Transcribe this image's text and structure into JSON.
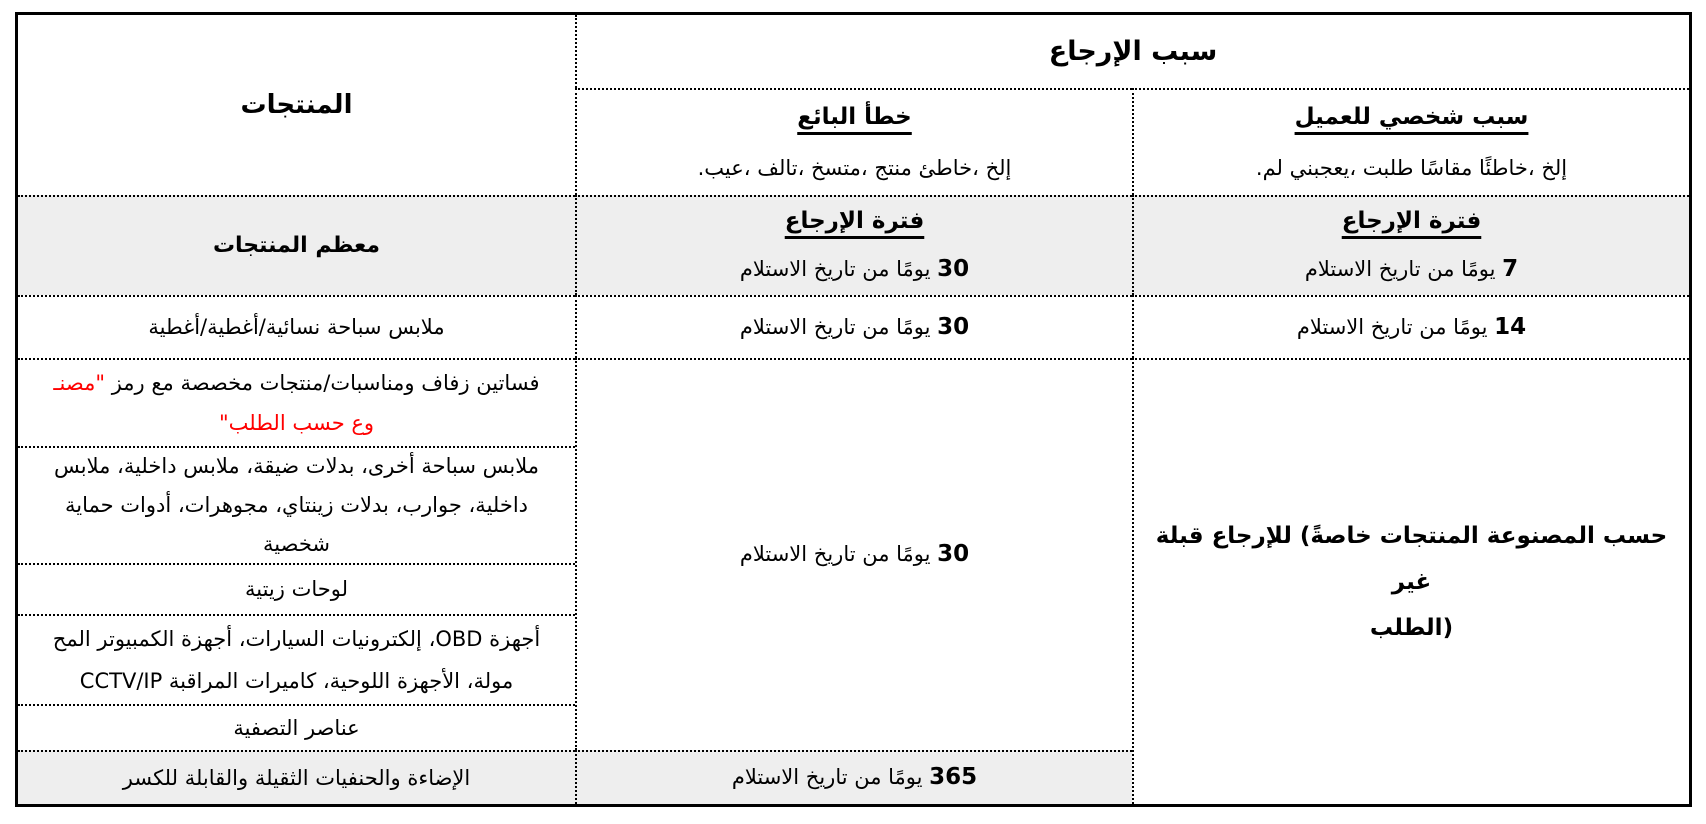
{
  "table": {
    "products_header": "المنتجات",
    "title": "سبب الإرجاع",
    "seller": {
      "heading": "خطأ البائع",
      "desc": "إلخ ،خاطئ منتج ،متسخ ،تالف ،عيب."
    },
    "customer": {
      "heading": "سبب شخصي للعميل",
      "desc": "إلخ ،خاطئًا مقاسًا طلبت ،يعجبني لم."
    },
    "period_heading": "فترة الإرجاع",
    "days_suffix": " يومًا من تاريخ الاستلام",
    "rows": {
      "most_products": {
        "label": "معظم المنتجات",
        "seller_days": "30",
        "customer_days": "7"
      },
      "swimwear": {
        "label": "ملابس سباحة نسائية/أغطية/أغطية",
        "seller_days": "30",
        "customer_days": "14"
      },
      "custom_made": {
        "line1_black": "فساتين زفاف ومناسبات/منتجات مخصصة مع رمز",
        "line1_red": " \"مصنـ",
        "line2_red": "وع حسب الطلب\""
      },
      "personal_items": {
        "line1": "ملابس سباحة أخرى، بدلات ضيقة، ملابس داخلية، ملابس",
        "line2": "داخلية، جوارب، بدلات زينتاي، مجوهرات، أدوات حماية",
        "line3": "شخصية"
      },
      "oil_paintings": {
        "label": "لوحات زيتية"
      },
      "electronics": {
        "line1": "أجهزة OBD، إلكترونيات السيارات، أجهزة الكمبيوتر المح",
        "line2": "مولة، الأجهزة اللوحية، كاميرات المراقبة CCTV/IP"
      },
      "clearance": {
        "label": "عناصر التصفية"
      },
      "lighting": {
        "label": "الإضاءة والحنفيات الثقيلة والقابلة للكسر"
      },
      "merged_seller_days": "30",
      "lighting_days": "365",
      "nonreturnable": {
        "line1": "حسب المصنوعة المنتجات خاصةً) للإرجاع قبلة غير",
        "line2": "(الطلب"
      }
    },
    "colors": {
      "highlight_red": "#ff0000",
      "band_gray": "#eeeeee",
      "border_black": "#000000"
    }
  }
}
